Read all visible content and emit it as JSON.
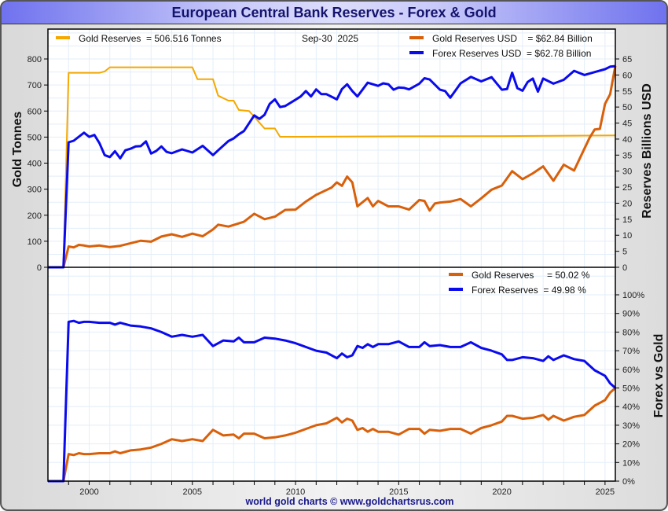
{
  "title": "European Central Bank Reserves - Forex & Gold",
  "credit": "world gold charts © www.goldchartsrus.com",
  "colors": {
    "gold_tonnes": "#f5a800",
    "gold_usd": "#d9600b",
    "forex": "#0a0aee",
    "grid": "#e3eef8"
  },
  "chart_data": [
    {
      "type": "line",
      "panel": "top",
      "title": "European Central Bank Reserves - Forex & Gold",
      "date_label": "Sep-30  2025",
      "legend": [
        {
          "key": "gold_tonnes",
          "label": "Gold Reserves  = 506.516 Tonnes"
        },
        {
          "key": "gold_usd",
          "label": "Gold Reserves USD    = $62.84 Billion"
        },
        {
          "key": "forex",
          "label": "Forex Reserves USD  = $62.78 Billion"
        }
      ],
      "ylabel_left": "Gold Tonnes",
      "ylabel_right": "Reserves Billions USD",
      "ylim_left": [
        0,
        800
      ],
      "ylim_right": [
        0,
        65
      ],
      "yticks_left": [
        "0",
        "100",
        "200",
        "300",
        "400",
        "500",
        "600",
        "700",
        "800"
      ],
      "yticks_right": [
        "0",
        "5",
        "10",
        "15",
        "20",
        "25",
        "30",
        "35",
        "40",
        "45",
        "50",
        "55",
        "60",
        "65"
      ],
      "xlim": [
        1998,
        2025.5
      ],
      "series": [
        {
          "name": "Gold Reserves (Tonnes)",
          "key": "gold_tonnes",
          "axis": "left",
          "x": [
            1998.0,
            1998.75,
            1999.0,
            2000.0,
            2000.5,
            2000.75,
            2001.0,
            2002.0,
            2003.0,
            2004.0,
            2004.5,
            2005.0,
            2005.25,
            2006.0,
            2006.25,
            2006.75,
            2007.0,
            2007.25,
            2007.75,
            2008.0,
            2008.5,
            2009.0,
            2009.25,
            2010.0,
            2012.0,
            2015.0,
            2020.0,
            2022.5,
            2025.5
          ],
          "y": [
            0,
            0,
            747,
            747,
            747,
            752,
            768,
            768,
            768,
            768,
            768,
            768,
            722,
            722,
            659,
            640,
            640,
            604,
            600,
            578,
            533,
            533,
            501,
            501,
            502,
            503,
            504,
            505,
            506.5
          ]
        },
        {
          "name": "Gold Reserves USD (Billion)",
          "key": "gold_usd",
          "axis": "right",
          "x": [
            1998.0,
            1998.75,
            1999.0,
            1999.25,
            1999.5,
            1999.75,
            2000.0,
            2000.5,
            2001.0,
            2001.5,
            2002.0,
            2002.5,
            2003.0,
            2003.5,
            2004.0,
            2004.5,
            2005.0,
            2005.5,
            2006.0,
            2006.25,
            2006.75,
            2007.0,
            2007.5,
            2008.0,
            2008.5,
            2009.0,
            2009.5,
            2010.0,
            2010.5,
            2011.0,
            2011.5,
            2011.75,
            2012.0,
            2012.25,
            2012.5,
            2012.75,
            2013.0,
            2013.5,
            2013.75,
            2014.0,
            2014.5,
            2015.0,
            2015.5,
            2016.0,
            2016.25,
            2016.5,
            2016.75,
            2017.0,
            2017.5,
            2018.0,
            2018.5,
            2019.0,
            2019.5,
            2020.0,
            2020.5,
            2021.0,
            2021.5,
            2022.0,
            2022.5,
            2023.0,
            2023.5,
            2024.0,
            2024.25,
            2024.5,
            2024.75,
            2025.0,
            2025.25,
            2025.5
          ],
          "y": [
            0,
            0,
            6.5,
            6.2,
            7.0,
            6.8,
            6.5,
            6.8,
            6.3,
            6.7,
            7.5,
            8.3,
            8.0,
            9.6,
            10.3,
            9.5,
            10.5,
            9.7,
            11.8,
            13.3,
            12.7,
            13.2,
            14.2,
            16.7,
            15.0,
            15.8,
            17.9,
            18.0,
            20.5,
            22.6,
            24.1,
            24.9,
            26.5,
            25.4,
            28.3,
            26.5,
            19.0,
            21.6,
            19.0,
            20.7,
            19.0,
            19.0,
            18.0,
            21.0,
            20.7,
            17.7,
            19.9,
            20.2,
            20.5,
            21.3,
            19.0,
            21.5,
            24.2,
            25.5,
            30.0,
            27.5,
            29.3,
            31.5,
            27.0,
            32.0,
            30.2,
            37.0,
            40.4,
            43.0,
            43.2,
            51.0,
            54.0,
            62.84
          ]
        },
        {
          "name": "Forex Reserves USD (Billion)",
          "key": "forex",
          "axis": "right",
          "x": [
            1998.0,
            1998.75,
            1999.0,
            1999.25,
            1999.75,
            2000.0,
            2000.25,
            2000.5,
            2000.75,
            2001.0,
            2001.25,
            2001.5,
            2001.75,
            2002.0,
            2002.25,
            2002.5,
            2002.75,
            2003.0,
            2003.25,
            2003.5,
            2003.75,
            2004.0,
            2004.5,
            2005.0,
            2005.5,
            2006.0,
            2006.25,
            2006.75,
            2007.0,
            2007.25,
            2007.5,
            2008.0,
            2008.25,
            2008.5,
            2008.75,
            2009.0,
            2009.25,
            2009.5,
            2010.0,
            2010.25,
            2010.5,
            2010.75,
            2011.0,
            2011.25,
            2011.5,
            2012.0,
            2012.25,
            2012.5,
            2012.75,
            2013.0,
            2013.5,
            2014.0,
            2014.25,
            2014.5,
            2014.75,
            2015.0,
            2015.25,
            2015.5,
            2016.0,
            2016.25,
            2016.5,
            2017.0,
            2017.25,
            2017.5,
            2018.0,
            2018.5,
            2019.0,
            2019.5,
            2020.0,
            2020.25,
            2020.5,
            2020.75,
            2021.0,
            2021.25,
            2021.5,
            2021.75,
            2022.0,
            2022.5,
            2023.0,
            2023.5,
            2024.0,
            2024.5,
            2025.0,
            2025.25,
            2025.5
          ],
          "y": [
            0,
            0,
            39.0,
            39.5,
            42.0,
            40.7,
            41.3,
            38.7,
            35.0,
            34.4,
            36.2,
            34.0,
            36.5,
            37.0,
            37.7,
            37.8,
            39.3,
            35.5,
            36.3,
            37.7,
            36.0,
            35.6,
            36.8,
            35.8,
            37.9,
            35.0,
            36.5,
            39.4,
            40.2,
            41.5,
            42.5,
            47.4,
            46.3,
            47.6,
            51.0,
            52.4,
            50.0,
            50.3,
            52.3,
            53.3,
            55.0,
            53.3,
            55.5,
            54.0,
            54.0,
            52.4,
            55.6,
            57.1,
            55.0,
            53.3,
            57.6,
            56.6,
            57.4,
            57.1,
            55.4,
            56.1,
            56.0,
            55.5,
            57.3,
            59.0,
            58.6,
            55.4,
            55.0,
            52.9,
            57.4,
            59.4,
            58.0,
            59.3,
            55.4,
            55.6,
            60.7,
            55.9,
            55.1,
            57.8,
            58.9,
            54.8,
            58.9,
            57.3,
            58.5,
            61.3,
            60.0,
            60.9,
            61.8,
            62.6,
            62.78
          ]
        }
      ]
    },
    {
      "type": "line",
      "panel": "bottom",
      "legend": [
        {
          "key": "gold_usd",
          "label": "Gold Reserves     = 50.02 %"
        },
        {
          "key": "forex",
          "label": "Forex Reserves  = 49.98 %"
        }
      ],
      "ylabel_right": "Forex vs Gold",
      "ylim": [
        0,
        100
      ],
      "yticks": [
        "0%",
        "10%",
        "20%",
        "30%",
        "40%",
        "50%",
        "60%",
        "70%",
        "80%",
        "90%",
        "100%"
      ],
      "xlim": [
        1998,
        2025.5
      ],
      "xticks": [
        "2000",
        "2005",
        "2010",
        "2015",
        "2020",
        "2025"
      ],
      "series": [
        {
          "name": "Gold Reserves %",
          "key": "gold_usd",
          "x": [
            1998.0,
            1998.75,
            1999.0,
            1999.25,
            1999.5,
            1999.75,
            2000.0,
            2000.5,
            2001.0,
            2001.25,
            2001.5,
            2002.0,
            2002.5,
            2003.0,
            2003.5,
            2004.0,
            2004.5,
            2005.0,
            2005.5,
            2006.0,
            2006.5,
            2007.0,
            2007.25,
            2007.5,
            2008.0,
            2008.5,
            2009.0,
            2009.5,
            2010.0,
            2010.5,
            2011.0,
            2011.5,
            2012.0,
            2012.25,
            2012.5,
            2012.75,
            2013.0,
            2013.25,
            2013.5,
            2013.75,
            2014.0,
            2014.5,
            2015.0,
            2015.5,
            2016.0,
            2016.25,
            2016.5,
            2017.0,
            2017.5,
            2018.0,
            2018.5,
            2019.0,
            2019.5,
            2020.0,
            2020.25,
            2020.5,
            2021.0,
            2021.5,
            2022.0,
            2022.25,
            2022.5,
            2023.0,
            2023.5,
            2024.0,
            2024.25,
            2024.5,
            2025.0,
            2025.25,
            2025.5
          ],
          "y": [
            0,
            0,
            14.5,
            14,
            15,
            14.5,
            14.5,
            15,
            15,
            16,
            15,
            16.5,
            17,
            18,
            20,
            22.5,
            21.5,
            22.5,
            21.5,
            27.5,
            24.5,
            25,
            23,
            25.5,
            25.5,
            23,
            23.5,
            24.5,
            26,
            28,
            30,
            31,
            34,
            31.5,
            33.5,
            32.5,
            27.5,
            28.5,
            26.5,
            28,
            26.5,
            26.5,
            25,
            28,
            28,
            25.5,
            27.5,
            27,
            28,
            28,
            25.5,
            28.5,
            30,
            32,
            35,
            35,
            33.5,
            34,
            35.5,
            33,
            35,
            32.5,
            34.5,
            35.5,
            38,
            40.5,
            43.5,
            47.5,
            50.02
          ]
        },
        {
          "name": "Forex Reserves %",
          "key": "forex",
          "x": [
            1998.0,
            1998.75,
            1999.0,
            1999.25,
            1999.5,
            1999.75,
            2000.0,
            2000.5,
            2001.0,
            2001.25,
            2001.5,
            2002.0,
            2002.5,
            2003.0,
            2003.5,
            2004.0,
            2004.5,
            2005.0,
            2005.5,
            2006.0,
            2006.5,
            2007.0,
            2007.25,
            2007.5,
            2008.0,
            2008.5,
            2009.0,
            2009.5,
            2010.0,
            2010.5,
            2011.0,
            2011.5,
            2012.0,
            2012.25,
            2012.5,
            2012.75,
            2013.0,
            2013.25,
            2013.5,
            2013.75,
            2014.0,
            2014.5,
            2015.0,
            2015.5,
            2016.0,
            2016.25,
            2016.5,
            2017.0,
            2017.5,
            2018.0,
            2018.5,
            2019.0,
            2019.5,
            2020.0,
            2020.25,
            2020.5,
            2021.0,
            2021.5,
            2022.0,
            2022.25,
            2022.5,
            2023.0,
            2023.5,
            2024.0,
            2024.25,
            2024.5,
            2025.0,
            2025.25,
            2025.5
          ],
          "y": [
            0,
            0,
            85.5,
            86,
            85,
            85.5,
            85.5,
            85,
            85,
            84,
            85,
            83.5,
            83,
            82,
            80,
            77.5,
            78.5,
            77.5,
            78.5,
            72.5,
            75.5,
            75,
            77,
            74.5,
            74.5,
            77,
            76.5,
            75.5,
            74,
            72,
            70,
            69,
            66,
            68.5,
            66.5,
            67.5,
            72.5,
            71.5,
            73.5,
            72,
            73.5,
            73.5,
            75,
            72,
            72,
            74.5,
            72.5,
            73,
            72,
            72,
            74.5,
            71.5,
            70,
            68,
            65,
            65,
            66.5,
            66,
            64.5,
            67,
            65,
            67.5,
            65.5,
            64.5,
            62,
            59.5,
            56.5,
            52.5,
            49.98
          ]
        }
      ]
    }
  ]
}
